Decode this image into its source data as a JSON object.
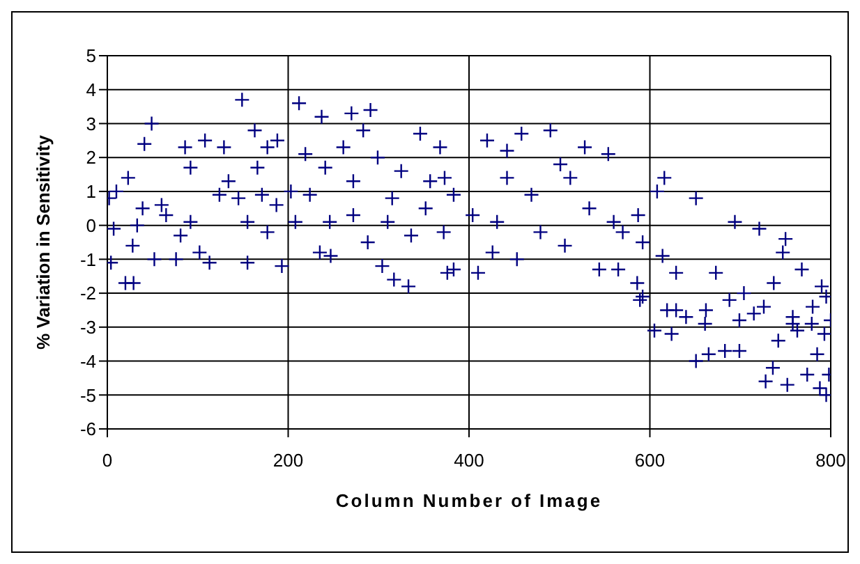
{
  "chart_data": {
    "type": "scatter",
    "xlabel": "Column Number of Image",
    "ylabel": "% Variation in Sensitivity",
    "xlim": [
      0,
      800
    ],
    "xticks": [
      0,
      200,
      400,
      600,
      800
    ],
    "ylim": [
      -6,
      5
    ],
    "yticks": [
      -6,
      -5,
      -4,
      -3,
      -2,
      -1,
      0,
      1,
      2,
      3,
      4,
      5
    ],
    "grid": true,
    "marker": "cross",
    "series": [
      {
        "color": "#000080",
        "x": [
          149,
          212,
          49,
          291,
          270,
          237,
          163,
          41,
          188,
          108,
          20,
          29,
          333,
          317,
          193,
          155,
          4,
          52,
          113,
          304,
          376,
          7,
          2,
          10,
          28,
          33,
          65,
          81,
          76,
          102,
          92,
          124,
          145,
          166,
          171,
          187,
          203,
          208,
          219,
          224,
          235,
          247,
          241,
          261,
          272,
          283,
          288,
          299,
          315,
          310,
          325,
          336,
          346,
          352,
          368,
          373,
          357,
          86,
          129,
          177,
          92,
          134,
          23,
          60,
          39,
          155,
          177,
          246,
          272,
          458,
          490,
          420,
          528,
          554,
          442,
          501,
          616,
          651,
          608,
          694,
          721,
          750,
          747,
          768,
          790,
          795,
          383,
          410,
          453,
          426,
          479,
          506,
          544,
          565,
          592,
          586,
          570,
          592,
          614,
          629,
          619,
          640,
          662,
          673,
          688,
          704,
          715,
          737,
          758,
          779,
          800,
          442,
          469,
          512,
          533,
          560,
          587,
          404,
          383,
          431,
          372,
          605,
          624,
          651,
          665,
          683,
          699,
          728,
          752,
          774,
          795,
          788,
          798,
          736,
          785,
          742,
          763,
          629,
          661,
          699,
          726,
          758,
          780,
          589,
          793
        ],
        "values": [
          3.7,
          3.6,
          3.0,
          3.4,
          3.3,
          3.2,
          2.8,
          2.4,
          2.5,
          2.5,
          -1.7,
          -1.7,
          -1.8,
          -1.6,
          -1.2,
          -1.1,
          -1.1,
          -1.0,
          -1.1,
          -1.2,
          -1.4,
          -0.1,
          0.8,
          1.0,
          -0.6,
          0.0,
          0.3,
          -0.3,
          -1.0,
          -0.8,
          0.1,
          0.9,
          0.8,
          1.7,
          0.9,
          0.6,
          1.0,
          0.1,
          2.1,
          0.9,
          -0.8,
          -0.9,
          1.7,
          2.3,
          1.3,
          2.8,
          -0.5,
          2.0,
          0.8,
          0.1,
          1.6,
          -0.3,
          2.7,
          0.5,
          2.3,
          1.4,
          1.3,
          2.3,
          2.3,
          2.3,
          1.7,
          1.3,
          1.4,
          0.6,
          0.5,
          0.1,
          -0.2,
          0.1,
          0.3,
          2.7,
          2.8,
          2.5,
          2.3,
          2.1,
          2.2,
          1.8,
          1.4,
          0.8,
          1.0,
          0.1,
          -0.1,
          -0.4,
          -0.8,
          -1.3,
          -1.8,
          -2.1,
          -1.3,
          -1.4,
          -1.0,
          -0.8,
          -0.2,
          -0.6,
          -1.3,
          -1.3,
          -2.1,
          -1.7,
          -0.2,
          -0.5,
          -0.9,
          -1.4,
          -2.5,
          -2.7,
          -2.5,
          -1.4,
          -2.2,
          -2.0,
          -2.6,
          -1.7,
          -2.7,
          -2.9,
          -2.8,
          1.4,
          0.9,
          1.4,
          0.5,
          0.1,
          0.3,
          0.3,
          0.9,
          0.1,
          -0.2,
          -3.1,
          -3.2,
          -4.0,
          -3.8,
          -3.7,
          -3.7,
          -4.6,
          -4.7,
          -4.4,
          -5.0,
          -4.8,
          -4.4,
          -4.2,
          -3.8,
          -3.4,
          -3.1,
          -2.5,
          -2.9,
          -2.8,
          -2.4,
          -2.9,
          -2.4,
          -2.2,
          -3.2
        ]
      }
    ]
  }
}
